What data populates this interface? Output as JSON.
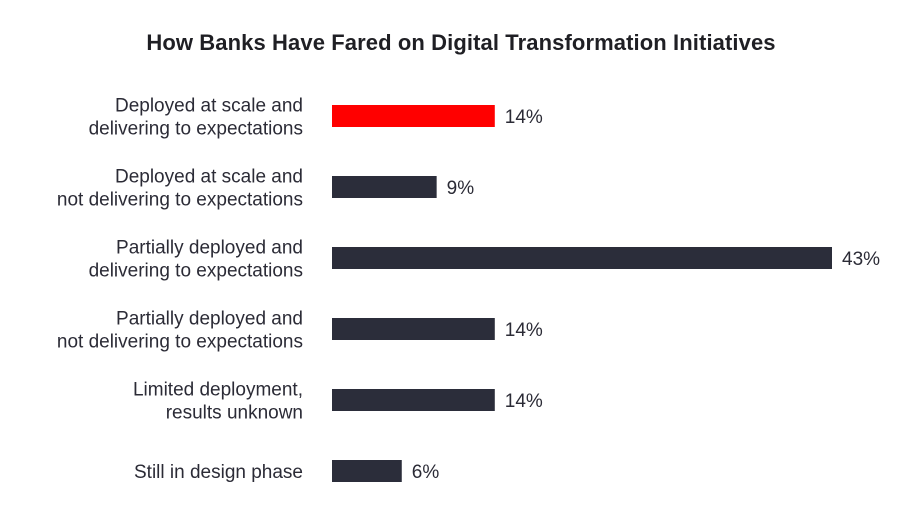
{
  "chart_data": {
    "type": "bar",
    "orientation": "horizontal",
    "title": "How Banks Have Fared on Digital Transformation Initiatives",
    "categories": [
      [
        "Deployed at scale and",
        "delivering to expectations"
      ],
      [
        "Deployed at scale and",
        "not delivering to expectations"
      ],
      [
        "Partially deployed and",
        "delivering to expectations"
      ],
      [
        "Partially deployed and",
        "not delivering to expectations"
      ],
      [
        "Limited deployment,",
        "results unknown"
      ],
      [
        "Still in design phase"
      ]
    ],
    "values": [
      14,
      9,
      43,
      14,
      14,
      6
    ],
    "value_labels": [
      "14%",
      "9%",
      "43%",
      "14%",
      "14%",
      "6%"
    ],
    "xlabel": "",
    "ylabel": "",
    "xlim": [
      0,
      43
    ],
    "grid": false,
    "legend": "none",
    "colors": {
      "highlight": "#ff0000",
      "default": "#2b2d3a"
    },
    "highlight_index": 0
  }
}
